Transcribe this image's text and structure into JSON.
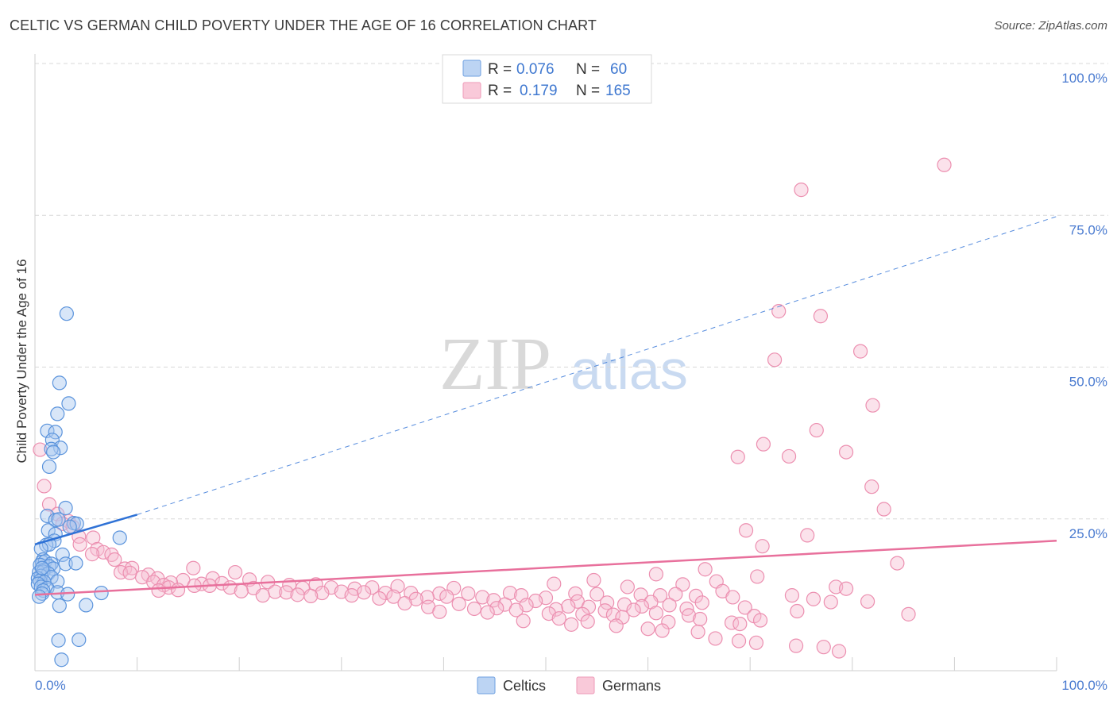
{
  "title": "CELTIC VS GERMAN CHILD POVERTY UNDER THE AGE OF 16 CORRELATION CHART",
  "source": "Source: ZipAtlas.com",
  "watermark": {
    "zip": "ZIP",
    "atlas": "atlas"
  },
  "legend": {
    "celtics": {
      "r_label": "R =",
      "r_value": "0.076",
      "n_label": "N =",
      "n_value": "60"
    },
    "germans": {
      "r_label": "R =",
      "r_value": "0.179",
      "n_label": "N =",
      "n_value": "165"
    }
  },
  "bottom_legend": {
    "celtics": "Celtics",
    "germans": "Germans"
  },
  "colors": {
    "celtic_fill": "#a9c8f0",
    "celtic_stroke": "#5a93dc",
    "celtic_line": "#2f72d6",
    "german_fill": "#f7bfd2",
    "german_stroke": "#ec8fb0",
    "german_line": "#e8709c",
    "tick_text": "#4a7bd0",
    "grid": "#d8d8d8"
  },
  "chart_data": {
    "type": "scatter",
    "title": "CELTIC VS GERMAN CHILD POVERTY UNDER THE AGE OF 16 CORRELATION CHART",
    "xlabel": "",
    "ylabel": "Child Poverty Under the Age of 16",
    "xlim": [
      0,
      100
    ],
    "ylim": [
      0,
      100
    ],
    "x_tick_labels": [
      "0.0%",
      "100.0%"
    ],
    "y_tick_labels": [
      {
        "value": 100,
        "label": "100.0%"
      },
      {
        "value": 75,
        "label": "75.0%"
      },
      {
        "value": 50,
        "label": "50.0%"
      },
      {
        "value": 25,
        "label": "25.0%"
      }
    ],
    "series": [
      {
        "name": "Celtics",
        "r": 0.076,
        "n": 60,
        "trend": {
          "x0": 0,
          "y0": 20.8,
          "x1": 10,
          "y1": 25.7,
          "dashed_to_x": 100,
          "dashed_to_y": 74.8
        },
        "points": [
          [
            3.1,
            58.8
          ],
          [
            2.4,
            47.4
          ],
          [
            3.3,
            44.0
          ],
          [
            2.2,
            42.3
          ],
          [
            1.2,
            39.5
          ],
          [
            2.0,
            39.3
          ],
          [
            1.7,
            38.0
          ],
          [
            2.5,
            36.7
          ],
          [
            1.6,
            36.5
          ],
          [
            1.8,
            36.0
          ],
          [
            1.4,
            33.6
          ],
          [
            3.0,
            26.8
          ],
          [
            1.2,
            25.5
          ],
          [
            2.0,
            24.8
          ],
          [
            2.3,
            24.9
          ],
          [
            3.8,
            24.3
          ],
          [
            4.1,
            24.2
          ],
          [
            3.4,
            23.7
          ],
          [
            1.3,
            23.1
          ],
          [
            2.0,
            22.5
          ],
          [
            8.3,
            21.9
          ],
          [
            1.9,
            21.4
          ],
          [
            1.1,
            20.7
          ],
          [
            1.4,
            20.8
          ],
          [
            0.6,
            20.1
          ],
          [
            2.7,
            19.1
          ],
          [
            0.8,
            18.3
          ],
          [
            0.7,
            17.9
          ],
          [
            1.0,
            18.0
          ],
          [
            3.0,
            17.6
          ],
          [
            4.0,
            17.7
          ],
          [
            1.6,
            17.6
          ],
          [
            0.5,
            17.4
          ],
          [
            1.4,
            17.2
          ],
          [
            0.9,
            16.6
          ],
          [
            1.8,
            16.8
          ],
          [
            0.4,
            16.2
          ],
          [
            0.8,
            16.3
          ],
          [
            1.3,
            16.0
          ],
          [
            0.6,
            15.6
          ],
          [
            0.3,
            15.2
          ],
          [
            1.6,
            15.4
          ],
          [
            0.5,
            14.8
          ],
          [
            2.2,
            14.7
          ],
          [
            0.9,
            14.6
          ],
          [
            0.3,
            14.3
          ],
          [
            0.6,
            13.8
          ],
          [
            1.2,
            13.6
          ],
          [
            0.8,
            13.2
          ],
          [
            2.2,
            12.9
          ],
          [
            6.5,
            12.8
          ],
          [
            0.7,
            12.7
          ],
          [
            3.2,
            12.6
          ],
          [
            0.4,
            12.2
          ],
          [
            2.4,
            10.7
          ],
          [
            5.0,
            10.8
          ],
          [
            2.3,
            5.0
          ],
          [
            4.3,
            5.1
          ],
          [
            2.6,
            1.8
          ],
          [
            0.7,
            16.9
          ]
        ]
      },
      {
        "name": "Germans",
        "r": 0.179,
        "n": 165,
        "trend": {
          "x0": 0,
          "y0": 12.5,
          "x1": 100,
          "y1": 21.4
        },
        "points": [
          [
            89.0,
            83.3
          ],
          [
            75.0,
            79.2
          ],
          [
            72.8,
            59.2
          ],
          [
            76.9,
            58.4
          ],
          [
            80.8,
            52.6
          ],
          [
            72.4,
            51.2
          ],
          [
            82.0,
            43.7
          ],
          [
            76.5,
            39.6
          ],
          [
            71.3,
            37.3
          ],
          [
            79.4,
            36.0
          ],
          [
            68.8,
            35.2
          ],
          [
            73.8,
            35.3
          ],
          [
            81.9,
            30.3
          ],
          [
            0.5,
            36.4
          ],
          [
            0.9,
            30.4
          ],
          [
            83.1,
            26.6
          ],
          [
            1.4,
            27.4
          ],
          [
            2.2,
            25.8
          ],
          [
            3.3,
            24.6
          ],
          [
            2.7,
            24.2
          ],
          [
            3.7,
            23.7
          ],
          [
            69.6,
            23.1
          ],
          [
            75.6,
            22.3
          ],
          [
            4.3,
            22.1
          ],
          [
            5.7,
            21.9
          ],
          [
            4.4,
            20.8
          ],
          [
            71.2,
            20.5
          ],
          [
            6.1,
            20.0
          ],
          [
            6.7,
            19.5
          ],
          [
            5.6,
            19.2
          ],
          [
            7.5,
            19.1
          ],
          [
            7.8,
            18.3
          ],
          [
            84.4,
            17.7
          ],
          [
            8.8,
            16.8
          ],
          [
            9.5,
            16.9
          ],
          [
            15.5,
            16.9
          ],
          [
            65.6,
            16.7
          ],
          [
            8.4,
            16.2
          ],
          [
            9.3,
            16.1
          ],
          [
            11.1,
            15.8
          ],
          [
            19.6,
            16.2
          ],
          [
            60.8,
            15.9
          ],
          [
            70.7,
            15.5
          ],
          [
            10.5,
            15.4
          ],
          [
            12.0,
            15.2
          ],
          [
            17.4,
            15.2
          ],
          [
            21.0,
            15.0
          ],
          [
            14.5,
            14.9
          ],
          [
            11.6,
            14.6
          ],
          [
            13.3,
            14.5
          ],
          [
            18.3,
            14.4
          ],
          [
            16.3,
            14.3
          ],
          [
            22.8,
            14.6
          ],
          [
            27.5,
            14.2
          ],
          [
            54.7,
            14.9
          ],
          [
            66.7,
            14.7
          ],
          [
            12.6,
            14.1
          ],
          [
            15.6,
            14.0
          ],
          [
            17.1,
            14.0
          ],
          [
            24.9,
            14.1
          ],
          [
            35.5,
            13.9
          ],
          [
            50.8,
            14.3
          ],
          [
            63.4,
            14.2
          ],
          [
            78.4,
            13.8
          ],
          [
            13.1,
            13.7
          ],
          [
            19.1,
            13.7
          ],
          [
            21.4,
            13.6
          ],
          [
            26.2,
            13.6
          ],
          [
            29.0,
            13.7
          ],
          [
            31.3,
            13.5
          ],
          [
            33.0,
            13.7
          ],
          [
            41.0,
            13.6
          ],
          [
            58.0,
            13.8
          ],
          [
            67.3,
            13.1
          ],
          [
            79.4,
            13.5
          ],
          [
            12.1,
            13.2
          ],
          [
            14.0,
            13.3
          ],
          [
            20.2,
            13.1
          ],
          [
            23.5,
            13.0
          ],
          [
            24.6,
            12.9
          ],
          [
            28.1,
            12.8
          ],
          [
            30.0,
            13.0
          ],
          [
            32.2,
            12.9
          ],
          [
            34.3,
            12.8
          ],
          [
            36.8,
            12.8
          ],
          [
            39.6,
            12.7
          ],
          [
            42.4,
            12.7
          ],
          [
            46.5,
            12.8
          ],
          [
            52.9,
            12.7
          ],
          [
            59.3,
            12.5
          ],
          [
            62.7,
            12.6
          ],
          [
            74.1,
            12.4
          ],
          [
            22.3,
            12.4
          ],
          [
            25.7,
            12.5
          ],
          [
            27.0,
            12.3
          ],
          [
            31.0,
            12.4
          ],
          [
            35.1,
            12.2
          ],
          [
            38.4,
            12.1
          ],
          [
            40.3,
            12.2
          ],
          [
            43.8,
            12.1
          ],
          [
            47.6,
            12.4
          ],
          [
            50.0,
            12.0
          ],
          [
            55.0,
            12.6
          ],
          [
            61.2,
            12.4
          ],
          [
            64.7,
            12.3
          ],
          [
            68.3,
            12.1
          ],
          [
            76.2,
            11.8
          ],
          [
            33.7,
            11.9
          ],
          [
            37.3,
            11.8
          ],
          [
            44.9,
            11.6
          ],
          [
            49.0,
            11.5
          ],
          [
            53.1,
            11.4
          ],
          [
            56.0,
            11.2
          ],
          [
            60.3,
            11.3
          ],
          [
            65.3,
            11.2
          ],
          [
            77.9,
            11.3
          ],
          [
            81.5,
            11.4
          ],
          [
            36.2,
            11.1
          ],
          [
            41.5,
            11.0
          ],
          [
            46.0,
            10.9
          ],
          [
            48.1,
            10.8
          ],
          [
            52.2,
            10.6
          ],
          [
            54.2,
            10.5
          ],
          [
            57.7,
            10.9
          ],
          [
            59.4,
            10.6
          ],
          [
            62.1,
            10.8
          ],
          [
            38.5,
            10.5
          ],
          [
            43.0,
            10.2
          ],
          [
            45.2,
            10.3
          ],
          [
            47.1,
            10.0
          ],
          [
            51.0,
            10.1
          ],
          [
            55.8,
            9.9
          ],
          [
            58.6,
            10.0
          ],
          [
            63.8,
            10.2
          ],
          [
            69.5,
            10.4
          ],
          [
            74.6,
            9.8
          ],
          [
            39.6,
            9.7
          ],
          [
            44.3,
            9.6
          ],
          [
            50.3,
            9.4
          ],
          [
            53.6,
            9.3
          ],
          [
            56.6,
            9.2
          ],
          [
            60.8,
            9.5
          ],
          [
            64.0,
            9.1
          ],
          [
            70.4,
            9.0
          ],
          [
            85.5,
            9.3
          ],
          [
            57.5,
            8.8
          ],
          [
            51.3,
            8.6
          ],
          [
            65.1,
            8.5
          ],
          [
            47.8,
            8.2
          ],
          [
            54.1,
            8.1
          ],
          [
            62.0,
            8.0
          ],
          [
            68.2,
            7.9
          ],
          [
            71.0,
            8.3
          ],
          [
            52.5,
            7.6
          ],
          [
            69.0,
            7.7
          ],
          [
            56.9,
            7.4
          ],
          [
            60.0,
            6.9
          ],
          [
            61.4,
            6.6
          ],
          [
            64.9,
            6.4
          ],
          [
            66.6,
            5.3
          ],
          [
            68.9,
            4.9
          ],
          [
            70.6,
            4.6
          ],
          [
            74.5,
            4.1
          ],
          [
            77.2,
            3.9
          ],
          [
            78.7,
            3.2
          ]
        ]
      }
    ]
  }
}
